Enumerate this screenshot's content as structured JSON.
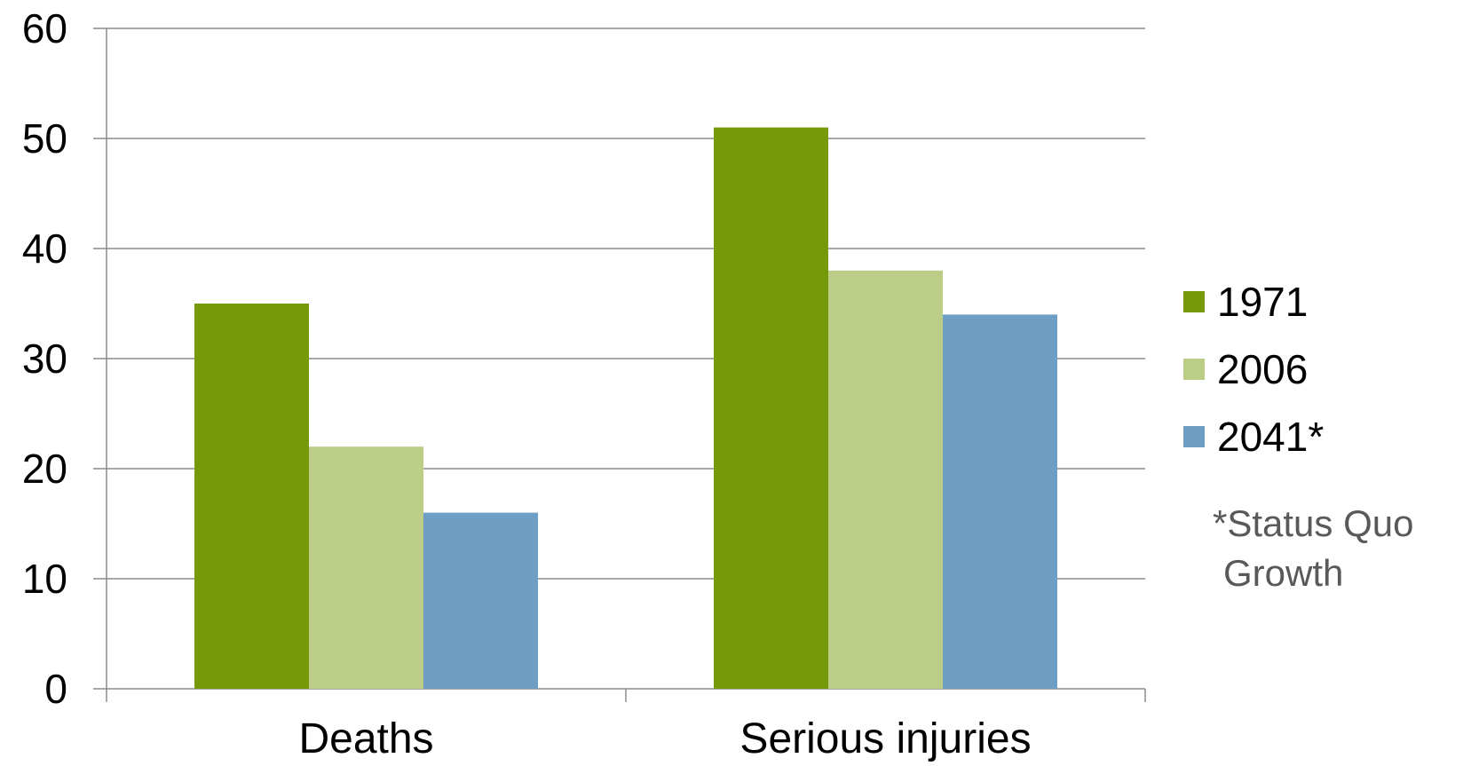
{
  "chart_data": {
    "type": "bar",
    "categories": [
      "Deaths",
      "Serious injuries"
    ],
    "series": [
      {
        "name": "1971",
        "values": [
          35,
          51
        ],
        "color": "#76990a"
      },
      {
        "name": "2006",
        "values": [
          22,
          38
        ],
        "color": "#bccd88"
      },
      {
        "name": "2041*",
        "values": [
          16,
          34
        ],
        "color": "#6e9ec4"
      }
    ],
    "ylim": [
      0,
      60
    ],
    "yticks": [
      "0",
      "10",
      "20",
      "30",
      "40",
      "50",
      "60"
    ],
    "grid": true,
    "legend_position": "right",
    "legend_note": [
      "*Status Quo",
      "Growth"
    ],
    "colors": {
      "grid": "#8c8c8c",
      "axis": "#8c8c8c",
      "note": "#595959"
    }
  }
}
